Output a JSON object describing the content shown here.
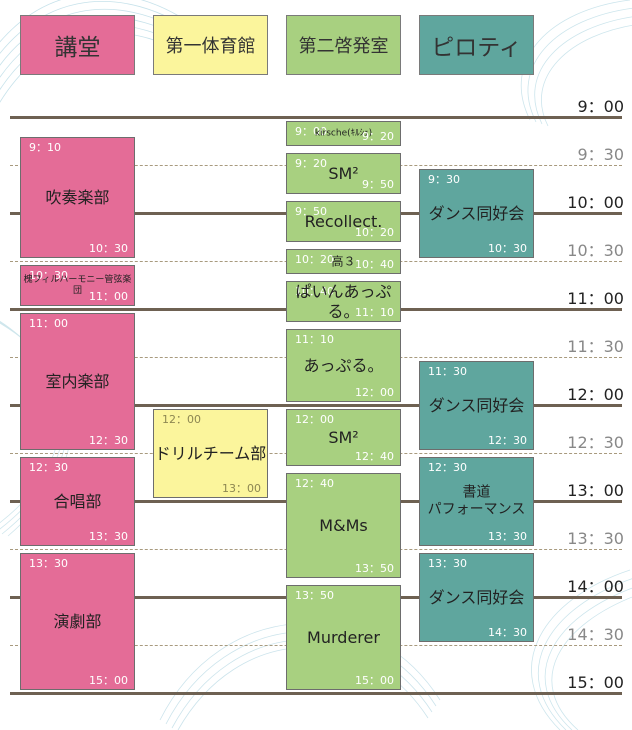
{
  "colors": {
    "auditorium": "#e46c97",
    "gym": "#fbf59c",
    "room2": "#a8d080",
    "piloti": "#5fa69e"
  },
  "venues": [
    {
      "id": "auditorium",
      "label": "講堂"
    },
    {
      "id": "gym",
      "label": "第一体育館"
    },
    {
      "id": "room2",
      "label": "第二啓発室"
    },
    {
      "id": "piloti",
      "label": "ピロティ"
    }
  ],
  "times": [
    "9：00",
    "9：30",
    "10：00",
    "10：30",
    "11：00",
    "11：30",
    "12：00",
    "12：30",
    "13：00",
    "13：30",
    "14：00",
    "14：30",
    "15：00"
  ],
  "events": [
    {
      "venue": "auditorium",
      "start": "9：10",
      "end": "10：30",
      "name": "吹奏楽部"
    },
    {
      "venue": "auditorium",
      "start": "10：30",
      "end": "11：00",
      "name": "槐フィルハーモニー管弦楽団"
    },
    {
      "venue": "auditorium",
      "start": "11：00",
      "end": "12：30",
      "name": "室内楽部"
    },
    {
      "venue": "auditorium",
      "start": "12：30",
      "end": "13：30",
      "name": "合唱部"
    },
    {
      "venue": "auditorium",
      "start": "13：30",
      "end": "15：00",
      "name": "演劇部"
    },
    {
      "venue": "gym",
      "start": "12：00",
      "end": "13：00",
      "name": "ドリルチーム部"
    },
    {
      "venue": "room2",
      "start": "9：00",
      "end": "9：20",
      "name": "kirsche(ｷﾙｼｪ)"
    },
    {
      "venue": "room2",
      "start": "9：20",
      "end": "9：50",
      "name": "SM²"
    },
    {
      "venue": "room2",
      "start": "9：50",
      "end": "10：20",
      "name": "Recollect."
    },
    {
      "venue": "room2",
      "start": "10：20",
      "end": "10：40",
      "name": "高３"
    },
    {
      "venue": "room2",
      "start": "10：40",
      "end": "11：10",
      "name": "ぱいんあっぷる。"
    },
    {
      "venue": "room2",
      "start": "11：10",
      "end": "12：00",
      "name": "あっぷる。"
    },
    {
      "venue": "room2",
      "start": "12：00",
      "end": "12：40",
      "name": "SM²"
    },
    {
      "venue": "room2",
      "start": "12：40",
      "end": "13：50",
      "name": "M&Ms"
    },
    {
      "venue": "room2",
      "start": "13：50",
      "end": "15：00",
      "name": "Murderer"
    },
    {
      "venue": "piloti",
      "start": "9：30",
      "end": "10：30",
      "name": "ダンス同好会"
    },
    {
      "venue": "piloti",
      "start": "11：30",
      "end": "12：30",
      "name": "ダンス同好会"
    },
    {
      "venue": "piloti",
      "start": "12：30",
      "end": "13：30",
      "name": "書道\nパフォーマンス"
    },
    {
      "venue": "piloti",
      "start": "13：30",
      "end": "14：30",
      "name": "ダンス同好会"
    }
  ]
}
